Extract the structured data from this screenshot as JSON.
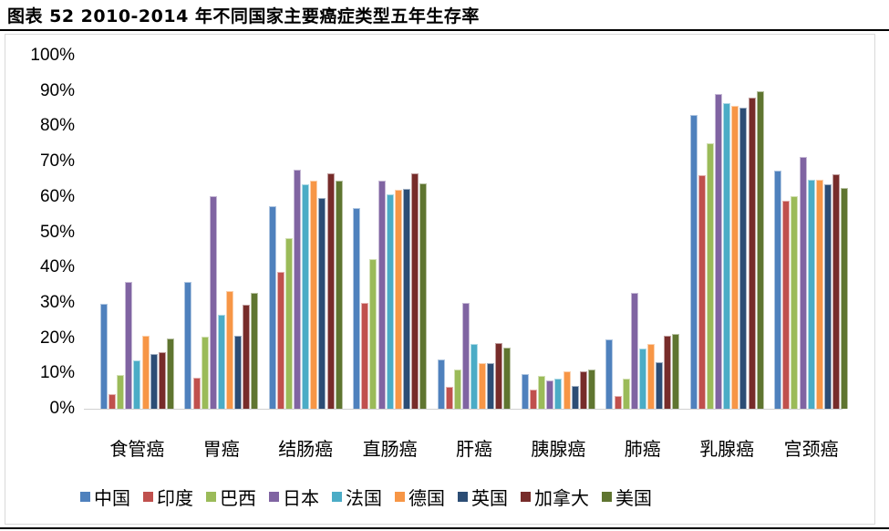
{
  "title": "图表 52 2010-2014 年不同国家主要癌症类型五年生存率",
  "chart_data": {
    "type": "bar",
    "title": "图表 52 2010-2014 年不同国家主要癌症类型五年生存率",
    "xlabel": "",
    "ylabel": "",
    "ylim": [
      0,
      100
    ],
    "yticks": [
      "0%",
      "10%",
      "20%",
      "30%",
      "40%",
      "50%",
      "60%",
      "70%",
      "80%",
      "90%",
      "100%"
    ],
    "grid": false,
    "legend_position": "bottom",
    "categories": [
      "食管癌",
      "胃癌",
      "结肠癌",
      "直肠癌",
      "肝癌",
      "胰腺癌",
      "肺癌",
      "乳腺癌",
      "宫颈癌"
    ],
    "series": [
      {
        "name": "中国",
        "color": "#4F81BD",
        "values": [
          29.7,
          35.9,
          57.4,
          56.8,
          14.0,
          9.8,
          19.6,
          83.2,
          67.4
        ]
      },
      {
        "name": "印度",
        "color": "#C0504D",
        "values": [
          4.1,
          8.8,
          38.8,
          30.0,
          6.2,
          5.4,
          3.6,
          66.1,
          58.9
        ]
      },
      {
        "name": "巴西",
        "color": "#9BBB59",
        "values": [
          9.6,
          20.4,
          48.3,
          42.4,
          11.1,
          9.3,
          8.5,
          75.2,
          60.2
        ]
      },
      {
        "name": "日本",
        "color": "#8064A2",
        "values": [
          35.9,
          60.2,
          67.7,
          64.6,
          30.0,
          8.0,
          32.8,
          89.1,
          71.3
        ]
      },
      {
        "name": "法国",
        "color": "#4BACC6",
        "values": [
          13.7,
          26.6,
          63.6,
          60.7,
          18.3,
          8.5,
          17.1,
          86.6,
          64.9
        ]
      },
      {
        "name": "德国",
        "color": "#F79646",
        "values": [
          20.7,
          33.3,
          64.6,
          62.0,
          12.9,
          10.6,
          18.3,
          85.8,
          64.9
        ]
      },
      {
        "name": "英国",
        "color": "#2C4D75",
        "values": [
          15.5,
          20.7,
          59.7,
          62.3,
          12.9,
          6.5,
          13.2,
          85.3,
          63.6
        ]
      },
      {
        "name": "加拿大",
        "color": "#772C2A",
        "values": [
          16.0,
          29.5,
          66.7,
          66.7,
          18.6,
          10.6,
          20.7,
          88.1,
          66.4
        ]
      },
      {
        "name": "美国",
        "color": "#5F7530",
        "values": [
          19.9,
          32.8,
          64.6,
          63.8,
          17.3,
          11.1,
          21.2,
          89.9,
          62.5
        ]
      }
    ]
  }
}
